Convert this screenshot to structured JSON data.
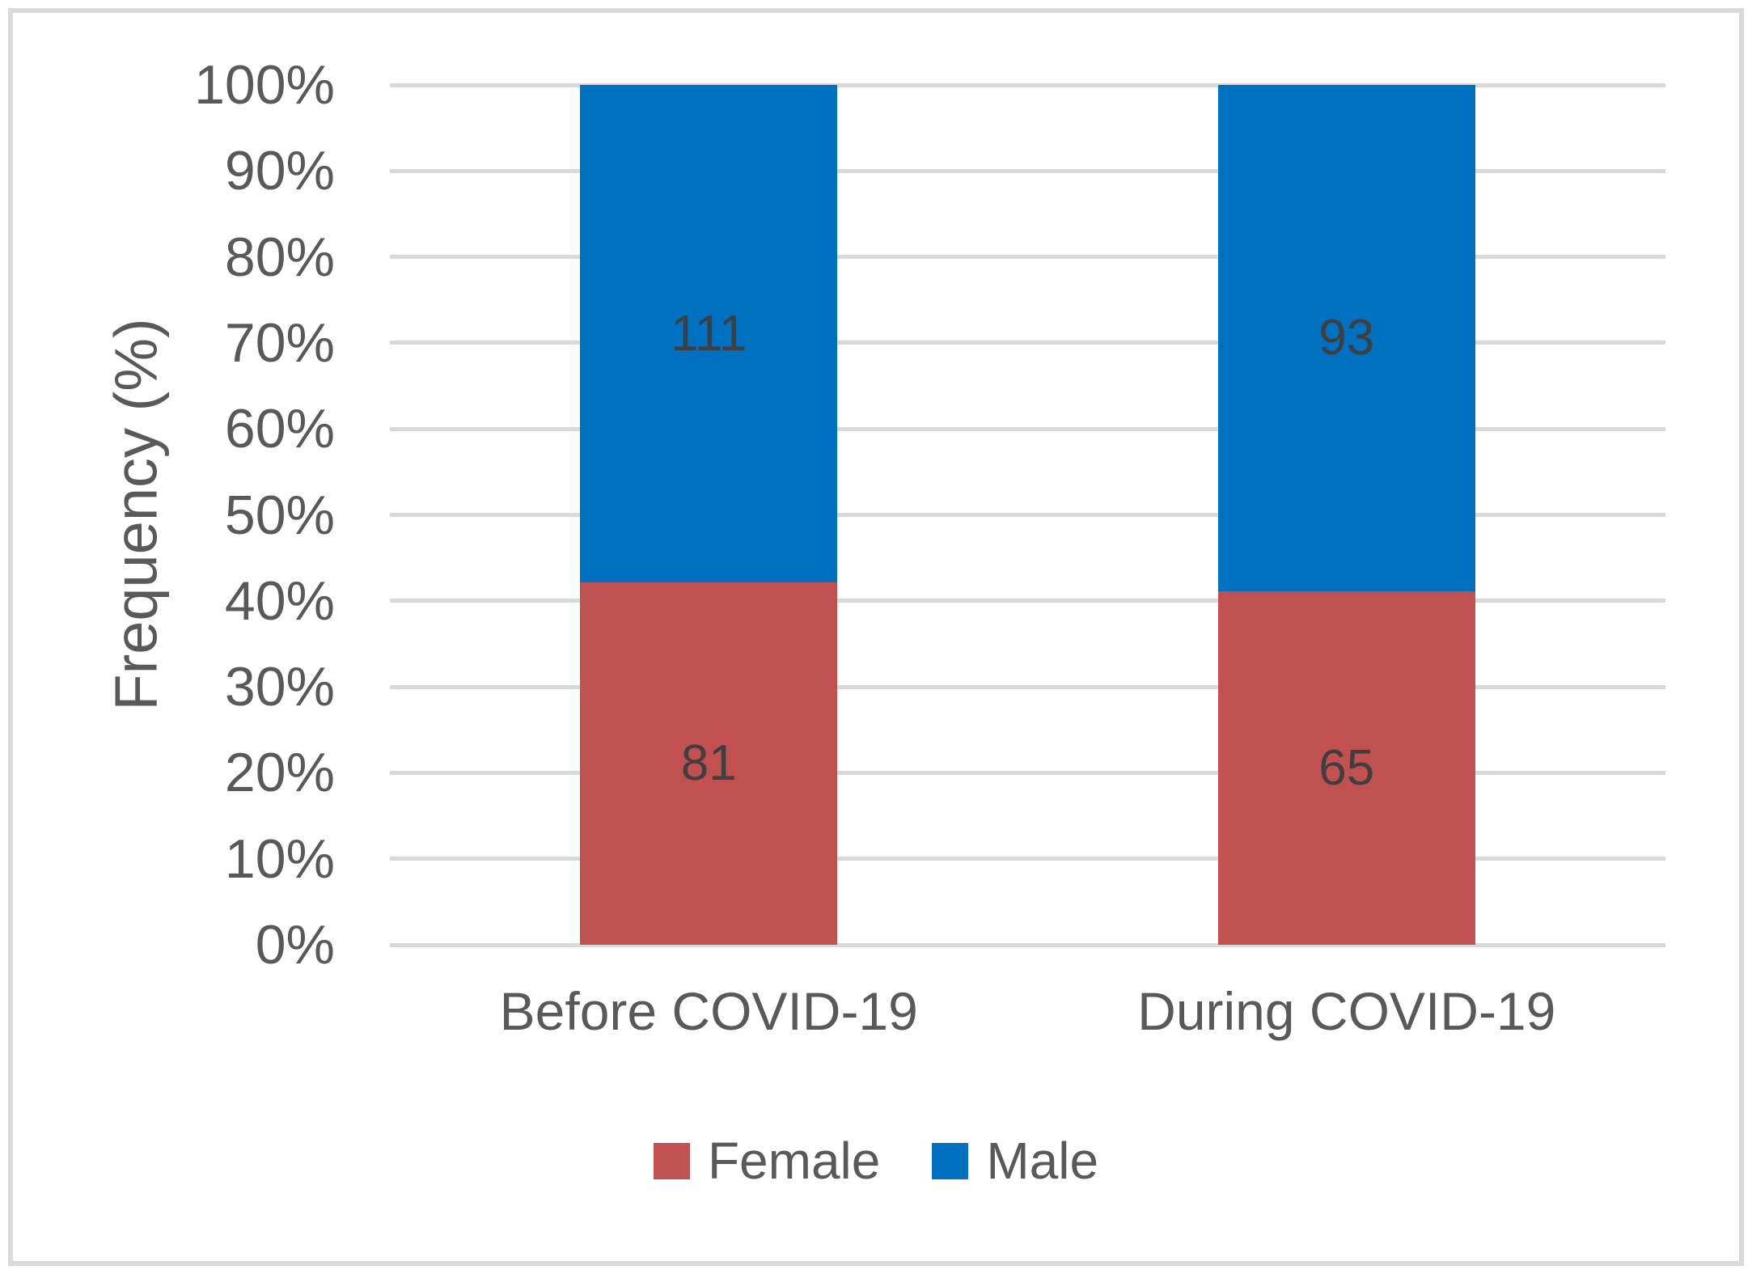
{
  "figure": {
    "border_color": "#D9D9D9",
    "background": "#FFFFFF"
  },
  "chart_data": {
    "type": "bar",
    "subtype": "stacked-100-percent",
    "title": "",
    "categories": [
      "Before COVID-19",
      "During COVID-19"
    ],
    "series": [
      {
        "name": "Female",
        "color": "#C15050",
        "values": [
          81,
          65
        ]
      },
      {
        "name": "Male",
        "color": "#0070C0",
        "values": [
          111,
          93
        ]
      }
    ],
    "data_labels": [
      {
        "category": "Before COVID-19",
        "Female": 81,
        "Male": 111
      },
      {
        "category": "During COVID-19",
        "Female": 65,
        "Male": 93
      }
    ],
    "ylabel": "Frequency (%)",
    "yticks": [
      "0%",
      "10%",
      "20%",
      "30%",
      "40%",
      "50%",
      "60%",
      "70%",
      "80%",
      "90%",
      "100%"
    ],
    "ylim": [
      0,
      100
    ],
    "grid": true,
    "gridline_color": "#D9D9D9",
    "axis_text_color": "#595959",
    "data_label_color": "#3F3F3F",
    "legend_position": "bottom"
  }
}
